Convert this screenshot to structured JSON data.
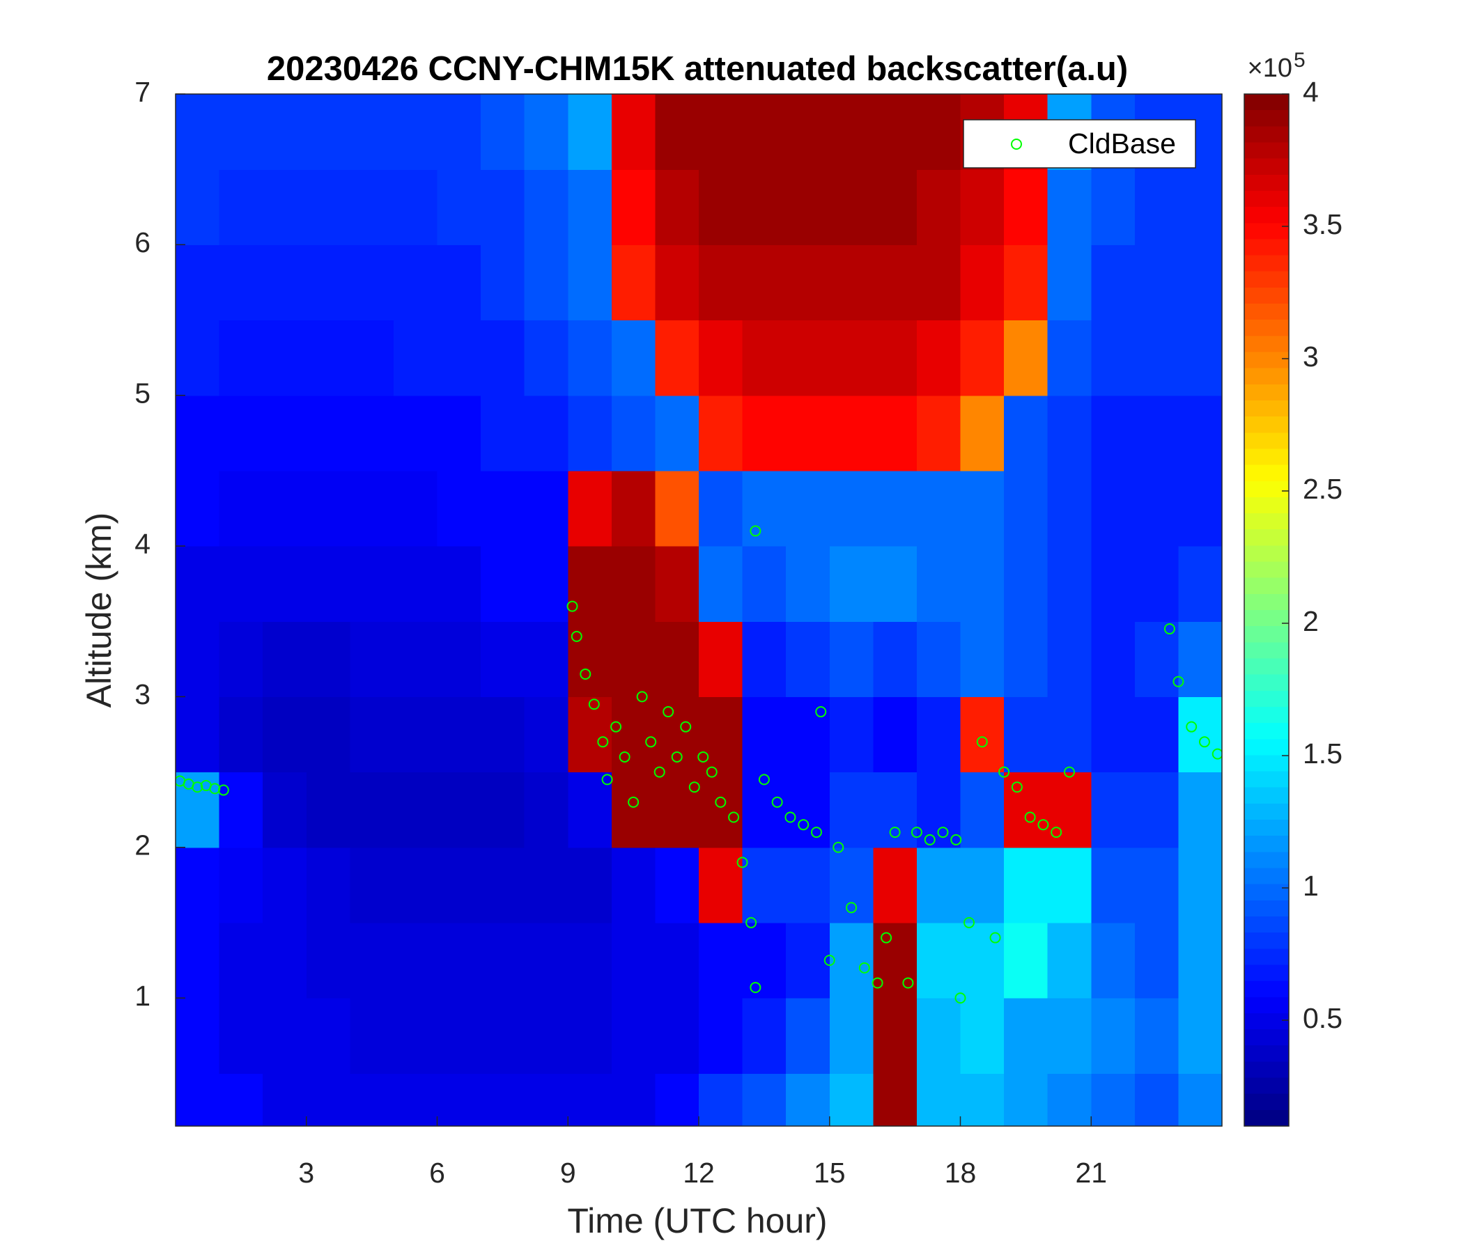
{
  "chart_data": {
    "type": "heatmap",
    "title": "20230426 CCNY-CHM15K attenuated backscatter(a.u)",
    "xlabel": "Time (UTC hour)",
    "ylabel": "Altitude (km)",
    "xlim": [
      0,
      24
    ],
    "xticks": [
      3,
      6,
      9,
      12,
      15,
      18,
      21
    ],
    "ylim": [
      0.15,
      7
    ],
    "yticks": [
      1,
      2,
      3,
      4,
      5,
      6,
      7
    ],
    "colormap": "jet",
    "zlim": [
      0.1,
      4
    ],
    "zticks": [
      0.5,
      1,
      1.5,
      2,
      2.5,
      3,
      3.5,
      4
    ],
    "colorbar_multiplier": "×10",
    "colorbar_exponent": "5",
    "x_edges": [
      0,
      1,
      2,
      3,
      4,
      5,
      6,
      7,
      8,
      9,
      10,
      11,
      12,
      13,
      14,
      15,
      16,
      17,
      18,
      19,
      20,
      21,
      22,
      23,
      24
    ],
    "y_edges": [
      0.15,
      0.5,
      1,
      1.5,
      2,
      2.5,
      3,
      3.5,
      4,
      4.5,
      5,
      5.5,
      6,
      6.5,
      7
    ],
    "z": [
      [
        0.6,
        0.6,
        0.5,
        0.5,
        0.5,
        0.5,
        0.5,
        0.5,
        0.5,
        0.5,
        0.5,
        0.6,
        0.8,
        0.9,
        1.1,
        1.3,
        3.9,
        1.3,
        1.3,
        1.2,
        1.1,
        1.0,
        0.9,
        1.1
      ],
      [
        0.6,
        0.5,
        0.5,
        0.5,
        0.45,
        0.45,
        0.45,
        0.45,
        0.45,
        0.45,
        0.5,
        0.5,
        0.6,
        0.7,
        0.9,
        1.2,
        3.9,
        1.3,
        1.4,
        1.2,
        1.2,
        1.1,
        1.0,
        1.2
      ],
      [
        0.6,
        0.5,
        0.5,
        0.45,
        0.45,
        0.45,
        0.45,
        0.45,
        0.45,
        0.45,
        0.5,
        0.5,
        0.6,
        0.6,
        0.7,
        1.2,
        3.9,
        1.4,
        1.4,
        1.6,
        1.3,
        1.0,
        0.9,
        1.2
      ],
      [
        0.6,
        0.55,
        0.5,
        0.45,
        0.4,
        0.4,
        0.4,
        0.4,
        0.4,
        0.4,
        0.5,
        0.6,
        3.6,
        0.8,
        0.8,
        0.9,
        3.6,
        1.2,
        1.2,
        1.5,
        1.5,
        0.9,
        0.9,
        1.2
      ],
      [
        1.2,
        0.6,
        0.4,
        0.35,
        0.35,
        0.35,
        0.35,
        0.35,
        0.4,
        0.5,
        3.9,
        3.9,
        3.9,
        0.6,
        0.6,
        0.8,
        0.8,
        0.7,
        0.9,
        3.6,
        3.6,
        0.8,
        0.8,
        1.2
      ],
      [
        0.5,
        0.4,
        0.35,
        0.35,
        0.4,
        0.4,
        0.4,
        0.4,
        0.45,
        3.8,
        3.9,
        3.9,
        3.9,
        0.6,
        0.6,
        0.7,
        0.6,
        0.7,
        3.4,
        0.8,
        0.8,
        0.7,
        0.7,
        1.5
      ],
      [
        0.5,
        0.45,
        0.4,
        0.4,
        0.45,
        0.45,
        0.45,
        0.5,
        0.5,
        3.9,
        3.9,
        3.9,
        3.6,
        0.7,
        0.8,
        0.9,
        0.8,
        0.9,
        1.0,
        0.9,
        0.8,
        0.7,
        0.8,
        1.0
      ],
      [
        0.5,
        0.5,
        0.5,
        0.5,
        0.5,
        0.5,
        0.5,
        0.6,
        0.6,
        3.9,
        3.9,
        3.8,
        1.0,
        0.9,
        1.0,
        1.1,
        1.1,
        1.0,
        1.0,
        0.9,
        0.8,
        0.7,
        0.7,
        0.8
      ],
      [
        0.6,
        0.55,
        0.55,
        0.55,
        0.55,
        0.55,
        0.6,
        0.6,
        0.6,
        3.6,
        3.8,
        3.2,
        0.9,
        1.0,
        1.0,
        1.0,
        1.0,
        1.0,
        1.0,
        0.9,
        0.8,
        0.7,
        0.7,
        0.7
      ],
      [
        0.6,
        0.6,
        0.6,
        0.6,
        0.6,
        0.6,
        0.6,
        0.7,
        0.7,
        0.8,
        0.9,
        1.0,
        3.4,
        3.5,
        3.5,
        3.5,
        3.5,
        3.4,
        3.0,
        0.9,
        0.8,
        0.7,
        0.7,
        0.7
      ],
      [
        0.7,
        0.65,
        0.65,
        0.65,
        0.65,
        0.7,
        0.7,
        0.7,
        0.8,
        0.9,
        1.0,
        3.4,
        3.6,
        3.7,
        3.7,
        3.7,
        3.7,
        3.6,
        3.4,
        3.0,
        0.9,
        0.8,
        0.8,
        0.8
      ],
      [
        0.7,
        0.7,
        0.7,
        0.7,
        0.7,
        0.7,
        0.7,
        0.8,
        0.9,
        1.0,
        3.4,
        3.7,
        3.8,
        3.8,
        3.8,
        3.8,
        3.8,
        3.8,
        3.6,
        3.4,
        1.0,
        0.8,
        0.8,
        0.8
      ],
      [
        0.8,
        0.75,
        0.75,
        0.75,
        0.75,
        0.75,
        0.8,
        0.8,
        0.9,
        1.0,
        3.5,
        3.8,
        3.9,
        3.9,
        3.9,
        3.9,
        3.9,
        3.8,
        3.7,
        3.5,
        1.0,
        0.9,
        0.8,
        0.8
      ],
      [
        0.8,
        0.8,
        0.8,
        0.8,
        0.8,
        0.8,
        0.8,
        0.9,
        1.0,
        1.2,
        3.6,
        3.9,
        3.9,
        3.9,
        3.9,
        3.9,
        3.9,
        3.9,
        3.8,
        3.6,
        1.2,
        0.9,
        0.8,
        0.8
      ]
    ],
    "legend": "upper right",
    "series": [
      {
        "name": "CldBase",
        "type": "scatter",
        "color": "#00ff00",
        "x": [
          0.1,
          0.3,
          0.5,
          0.7,
          0.9,
          1.1,
          9.1,
          9.2,
          9.4,
          9.6,
          9.8,
          9.9,
          10.1,
          10.3,
          10.5,
          10.7,
          10.9,
          11.1,
          11.3,
          11.5,
          11.7,
          11.9,
          12.1,
          12.3,
          12.5,
          12.8,
          13.0,
          13.2,
          13.3,
          13.3,
          13.5,
          13.8,
          14.1,
          14.4,
          14.7,
          14.8,
          15.0,
          15.2,
          15.5,
          15.8,
          16.1,
          16.3,
          16.5,
          16.8,
          17.0,
          17.3,
          17.6,
          17.9,
          18.0,
          18.2,
          18.5,
          18.8,
          19.0,
          19.3,
          19.6,
          19.9,
          20.2,
          20.5,
          22.8,
          23.0,
          23.3,
          23.6,
          23.9
        ],
        "values": [
          2.44,
          2.42,
          2.4,
          2.41,
          2.39,
          2.38,
          3.6,
          3.4,
          3.15,
          2.95,
          2.7,
          2.45,
          2.8,
          2.6,
          2.3,
          3.0,
          2.7,
          2.5,
          2.9,
          2.6,
          2.8,
          2.4,
          2.6,
          2.5,
          2.3,
          2.2,
          1.9,
          1.5,
          1.07,
          4.1,
          2.45,
          2.3,
          2.2,
          2.15,
          2.1,
          2.9,
          1.25,
          2.0,
          1.6,
          1.2,
          1.1,
          1.4,
          2.1,
          1.1,
          2.1,
          2.05,
          2.1,
          2.05,
          1.0,
          1.5,
          2.7,
          1.4,
          2.5,
          2.4,
          2.2,
          2.15,
          2.1,
          2.5,
          3.45,
          3.1,
          2.8,
          2.7,
          2.62
        ]
      }
    ]
  }
}
